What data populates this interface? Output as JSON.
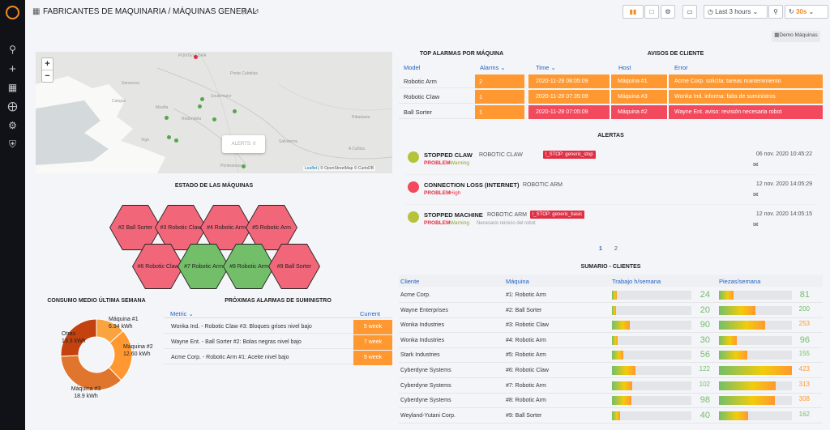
{
  "header": {
    "breadcrumb": "FABRICANTES DE MAQUINARIA / MÁQUINAS GENERAL",
    "time_range": "Last 3 hours",
    "refresh": "30s"
  },
  "demo_button": "Demo Máquinas",
  "map": {
    "zoom_in": "+",
    "zoom_out": "−",
    "attribution_leaflet": "Leaflet",
    "attribution_rest": " | © OpenStreetMap © CartoDB",
    "popup": "ALERTS: 0",
    "labels": [
      "PONTEVEDRA",
      "Ponte Caldelas",
      "Soutomaior",
      "Pontevedra",
      "Redondela",
      "Vigo",
      "A Cañiza",
      "Ribadavia",
      "Ponteareas",
      "Salvaterra",
      "Cangas",
      "Moaña",
      "Sanxenxo"
    ]
  },
  "machine_state": {
    "title": "ESTADO DE LAS MÁQUINAS",
    "hexes": [
      {
        "label": "#2 Ball Sorter",
        "status": "red"
      },
      {
        "label": "#3 Robotic Claw",
        "status": "red"
      },
      {
        "label": "#4 Robotic Arm",
        "status": "red"
      },
      {
        "label": "#5 Robotic Arm",
        "status": "red"
      },
      {
        "label": "#6 Robotic Claw",
        "status": "red"
      },
      {
        "label": "#7 Robotic Arm",
        "status": "green"
      },
      {
        "label": "#8 Robotic Arm",
        "status": "green"
      },
      {
        "label": "#9 Ball Sorter",
        "status": "red"
      }
    ]
  },
  "consumption": {
    "title": "CONSUMO MEDIO ÚLTIMA SEMANA",
    "slices": [
      {
        "name": "Máquina #1",
        "value": 6.94,
        "label": "6.94 kWh",
        "color": "#f9a43f"
      },
      {
        "name": "Máquina #2",
        "value": 12.6,
        "label": "12.60 kWh",
        "color": "#ff9830"
      },
      {
        "name": "Máquina #3",
        "value": 18.9,
        "label": "18.9 kWh",
        "color": "#e0752d"
      },
      {
        "name": "Otras",
        "value": 13.3,
        "label": "13.3 kWh",
        "color": "#c4420f"
      }
    ]
  },
  "supply": {
    "title": "PRÓXIMAS ALARMAS DE SUMINISTRO",
    "col_metric": "Metric",
    "col_current": "Current",
    "rows": [
      {
        "metric": "Wonka Ind. - Robotic Claw #3: Bloques grises nivel bajo",
        "current": "5 week"
      },
      {
        "metric": "Wayne Ent. - Ball Sorter #2: Bolas negras nivel bajo",
        "current": "7 week"
      },
      {
        "metric": "Acme Corp. - Robotic Arm #1: Aceite nivel bajo",
        "current": "9 week"
      }
    ]
  },
  "top_alarms": {
    "title": "TOP ALARMAS POR MÁQUINA",
    "col_model": "Model",
    "col_alarms": "Alarms",
    "rows": [
      {
        "model": "Robotic Arm",
        "alarms": "2"
      },
      {
        "model": "Robotic Claw",
        "alarms": "1"
      },
      {
        "model": "Ball Sorter",
        "alarms": "1"
      }
    ]
  },
  "client_notices": {
    "title": "AVISOS DE CLIENTE",
    "col_time": "Time",
    "col_host": "Host",
    "col_error": "Error",
    "rows": [
      {
        "time": "2020-11-28 08:05:09",
        "host": "Máquina #1",
        "error": "Acme Corp. solicita: tareas mantenimiento",
        "color": "#ff9830"
      },
      {
        "time": "2020-11-28 07:35:09",
        "host": "Máquina #3",
        "error": "Wonka Ind. informa: falta de suministros",
        "color": "#ff9830"
      },
      {
        "time": "2020-11-28 07:05:09",
        "host": "Máquina #2",
        "error": "Wayne Ent. aviso: revisión necesaria robot",
        "color": "#f2495c"
      }
    ]
  },
  "alerts": {
    "title": "ALERTAS",
    "items": [
      {
        "name": "STOPPED CLAW",
        "machine": "ROBOTIC CLAW",
        "tag": "l_STOP: generic_stop",
        "state": "PROBLEM",
        "severity": "Warning",
        "severity_color": "#8ab8ff",
        "icon": "yellow",
        "time": "06 nov. 2020 10:45:22",
        "note": ""
      },
      {
        "name": "CONNECTION LOSS (INTERNET)",
        "machine": "ROBOTIC ARM",
        "tag": "",
        "state": "PROBLEM",
        "severity": "High",
        "severity_color": "#f2495c",
        "icon": "red",
        "time": "12 nov. 2020 14:05:29",
        "note": ""
      },
      {
        "name": "STOPPED MACHINE",
        "machine": "ROBOTIC ARM",
        "tag": "l_STOP: generic_basic",
        "state": "PROBLEM",
        "severity": "Warning",
        "severity_color": "#8ab8ff",
        "icon": "yellow",
        "time": "12 nov. 2020 14:05:15",
        "note": "Necesario reinicio del robot"
      }
    ],
    "pages": [
      "1",
      "2"
    ]
  },
  "summary": {
    "title": "SUMARIO - CLIENTES",
    "col_client": "Cliente",
    "col_machine": "Máquina",
    "col_work": "Trabajo h/semana",
    "col_pieces": "Piezas/semana",
    "rows": [
      {
        "client": "Acme Corp.",
        "machine": "#1: Robotic Arm",
        "work": "24",
        "work_pct": 0.06,
        "pieces": "81",
        "pieces_pct": 0.2
      },
      {
        "client": "Wayne Enterprises",
        "machine": "#2: Ball Sorter",
        "work": "20",
        "work_pct": 0.05,
        "pieces": "200",
        "pieces_pct": 0.5
      },
      {
        "client": "Wonka Industries",
        "machine": "#3: Robotic Claw",
        "work": "90",
        "work_pct": 0.22,
        "pieces": "253",
        "pieces_pct": 0.63
      },
      {
        "client": "Wonka Industries",
        "machine": "#4: Robotic Arm",
        "work": "30",
        "work_pct": 0.07,
        "pieces": "96",
        "pieces_pct": 0.24
      },
      {
        "client": "Stark Industries",
        "machine": "#5: Robotic Arm",
        "work": "56",
        "work_pct": 0.14,
        "pieces": "155",
        "pieces_pct": 0.39
      },
      {
        "client": "Cyberdyne Systems",
        "machine": "#6: Robotic Claw",
        "work": "122",
        "work_pct": 0.3,
        "pieces": "423",
        "pieces_pct": 1.0
      },
      {
        "client": "Cyberdyne Systems",
        "machine": "#7: Robotic Arm",
        "work": "102",
        "work_pct": 0.25,
        "pieces": "313",
        "pieces_pct": 0.78
      },
      {
        "client": "Cyberdyne Systems",
        "machine": "#8: Robotic Arm",
        "work": "98",
        "work_pct": 0.24,
        "pieces": "308",
        "pieces_pct": 0.77
      },
      {
        "client": "Weyland-Yutani Corp.",
        "machine": "#9: Ball Sorter",
        "work": "40",
        "work_pct": 0.1,
        "pieces": "162",
        "pieces_pct": 0.4
      }
    ]
  }
}
